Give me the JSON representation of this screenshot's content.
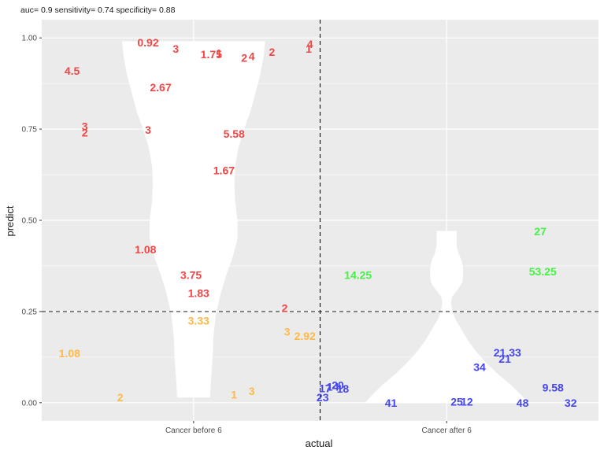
{
  "chart_data": {
    "type": "scatter",
    "subtitle": "auc= 0.9   sensitivity= 0.74   specificity= 0.88",
    "xlabel": "actual",
    "ylabel": "predict",
    "categories": [
      "Cancer before 6",
      "Cancer after 6"
    ],
    "ylim": [
      -0.05,
      1.05
    ],
    "yticks": [
      0.0,
      0.25,
      0.5,
      0.75,
      1.0
    ],
    "ytick_labels": [
      "0.00",
      "0.25",
      "0.50",
      "0.75",
      "1.00"
    ],
    "threshold": 0.25,
    "colors": {
      "panel_bg": "#ebebeb",
      "grid": "#ffffff",
      "red": "#f04646",
      "orange": "#ffb946",
      "green": "#46f046",
      "blue": "#4646f0",
      "violin": "#ffffff"
    },
    "violins": [
      {
        "category": "Cancer before 6",
        "profile": [
          [
            0.015,
            0.2
          ],
          [
            0.06,
            0.21
          ],
          [
            0.12,
            0.23
          ],
          [
            0.18,
            0.24
          ],
          [
            0.24,
            0.27
          ],
          [
            0.3,
            0.33
          ],
          [
            0.35,
            0.4
          ],
          [
            0.4,
            0.48
          ],
          [
            0.45,
            0.54
          ],
          [
            0.5,
            0.54
          ],
          [
            0.55,
            0.51
          ],
          [
            0.6,
            0.5
          ],
          [
            0.65,
            0.51
          ],
          [
            0.7,
            0.55
          ],
          [
            0.75,
            0.62
          ],
          [
            0.8,
            0.7
          ],
          [
            0.85,
            0.76
          ],
          [
            0.9,
            0.82
          ],
          [
            0.95,
            0.86
          ],
          [
            0.99,
            0.88
          ]
        ]
      },
      {
        "category": "Cancer after 6",
        "profile": [
          [
            0.0,
            1.0
          ],
          [
            0.02,
            0.92
          ],
          [
            0.05,
            0.78
          ],
          [
            0.08,
            0.62
          ],
          [
            0.11,
            0.48
          ],
          [
            0.14,
            0.36
          ],
          [
            0.17,
            0.26
          ],
          [
            0.2,
            0.18
          ],
          [
            0.23,
            0.1
          ],
          [
            0.25,
            0.07
          ],
          [
            0.27,
            0.05
          ],
          [
            0.29,
            0.06
          ],
          [
            0.31,
            0.13
          ],
          [
            0.33,
            0.19
          ],
          [
            0.35,
            0.2
          ],
          [
            0.37,
            0.2
          ],
          [
            0.39,
            0.18
          ],
          [
            0.41,
            0.14
          ],
          [
            0.43,
            0.12
          ],
          [
            0.45,
            0.12
          ],
          [
            0.47,
            0.12
          ]
        ]
      }
    ],
    "points": [
      {
        "label": "0.92",
        "x": 0.82,
        "y": 0.987,
        "color": "red"
      },
      {
        "label": "3",
        "x": 0.93,
        "y": 0.97,
        "color": "red"
      },
      {
        "label": "1.75",
        "x": 1.07,
        "y": 0.955,
        "color": "red"
      },
      {
        "label": "1",
        "x": 1.1,
        "y": 0.958,
        "color": "red"
      },
      {
        "label": "2",
        "x": 1.2,
        "y": 0.945,
        "color": "red"
      },
      {
        "label": "4",
        "x": 1.23,
        "y": 0.95,
        "color": "red"
      },
      {
        "label": "2",
        "x": 1.31,
        "y": 0.962,
        "color": "red"
      },
      {
        "label": "4",
        "x": 1.46,
        "y": 0.983,
        "color": "red"
      },
      {
        "label": "1",
        "x": 1.455,
        "y": 0.97,
        "color": "red"
      },
      {
        "label": "4.5",
        "x": 0.52,
        "y": 0.91,
        "color": "red"
      },
      {
        "label": "2.67",
        "x": 0.87,
        "y": 0.865,
        "color": "red"
      },
      {
        "label": "3",
        "x": 0.57,
        "y": 0.758,
        "color": "red"
      },
      {
        "label": "2",
        "x": 0.57,
        "y": 0.74,
        "color": "red"
      },
      {
        "label": "3",
        "x": 0.82,
        "y": 0.748,
        "color": "red"
      },
      {
        "label": "5.58",
        "x": 1.16,
        "y": 0.737,
        "color": "red"
      },
      {
        "label": "1.67",
        "x": 1.12,
        "y": 0.637,
        "color": "red"
      },
      {
        "label": "1.08",
        "x": 0.81,
        "y": 0.42,
        "color": "red"
      },
      {
        "label": "3.75",
        "x": 0.99,
        "y": 0.35,
        "color": "red"
      },
      {
        "label": "1.83",
        "x": 1.02,
        "y": 0.3,
        "color": "red"
      },
      {
        "label": "2",
        "x": 1.36,
        "y": 0.26,
        "color": "red"
      },
      {
        "label": "3.33",
        "x": 1.02,
        "y": 0.225,
        "color": "orange"
      },
      {
        "label": "3",
        "x": 1.37,
        "y": 0.195,
        "color": "orange"
      },
      {
        "label": "2.92",
        "x": 1.44,
        "y": 0.183,
        "color": "orange"
      },
      {
        "label": "1.08",
        "x": 0.51,
        "y": 0.135,
        "color": "orange"
      },
      {
        "label": "2",
        "x": 0.71,
        "y": 0.015,
        "color": "orange"
      },
      {
        "label": "1",
        "x": 1.16,
        "y": 0.022,
        "color": "orange"
      },
      {
        "label": "3",
        "x": 1.23,
        "y": 0.032,
        "color": "orange"
      },
      {
        "label": "14.25",
        "x": 1.65,
        "y": 0.35,
        "color": "green"
      },
      {
        "label": "27",
        "x": 2.37,
        "y": 0.47,
        "color": "green"
      },
      {
        "label": "53.25",
        "x": 2.38,
        "y": 0.36,
        "color": "green"
      },
      {
        "label": "21.33",
        "x": 2.24,
        "y": 0.138,
        "color": "blue"
      },
      {
        "label": "21",
        "x": 2.23,
        "y": 0.12,
        "color": "blue"
      },
      {
        "label": "34",
        "x": 2.13,
        "y": 0.098,
        "color": "blue"
      },
      {
        "label": "9.58",
        "x": 2.42,
        "y": 0.042,
        "color": "blue"
      },
      {
        "label": "17",
        "x": 1.52,
        "y": 0.04,
        "color": "blue"
      },
      {
        "label": "14",
        "x": 1.55,
        "y": 0.044,
        "color": "blue"
      },
      {
        "label": "20",
        "x": 1.57,
        "y": 0.048,
        "color": "blue"
      },
      {
        "label": "18",
        "x": 1.59,
        "y": 0.038,
        "color": "blue"
      },
      {
        "label": "23",
        "x": 1.51,
        "y": 0.015,
        "color": "blue"
      },
      {
        "label": "41",
        "x": 1.78,
        "y": 0.0,
        "color": "blue"
      },
      {
        "label": "25",
        "x": 2.04,
        "y": 0.003,
        "color": "blue"
      },
      {
        "label": "12",
        "x": 2.08,
        "y": 0.003,
        "color": "blue"
      },
      {
        "label": "48",
        "x": 2.3,
        "y": 0.0,
        "color": "blue"
      },
      {
        "label": "32",
        "x": 2.49,
        "y": 0.0,
        "color": "blue"
      }
    ]
  }
}
